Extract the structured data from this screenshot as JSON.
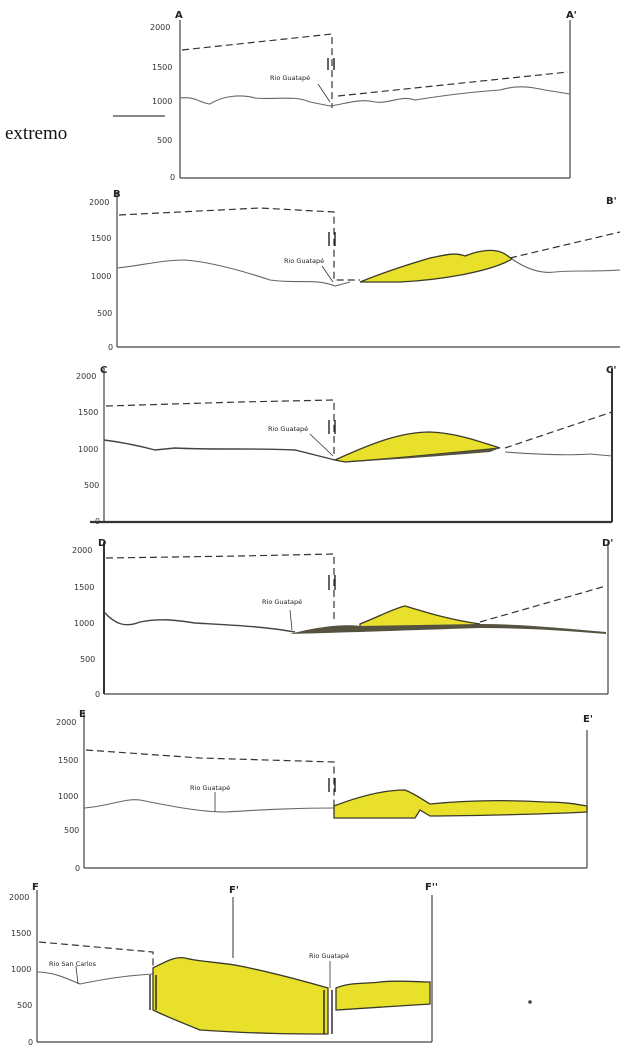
{
  "side_label": "extremo",
  "sections": [
    {
      "start": "A",
      "end": "A'",
      "ticks": [
        "2000",
        "1500",
        "1000",
        "500",
        "0"
      ],
      "river": "Rio Guatapé"
    },
    {
      "start": "B",
      "end": "B'",
      "ticks": [
        "2000",
        "1500",
        "1000",
        "500",
        "0"
      ],
      "river": "Rio Guatapé"
    },
    {
      "start": "C",
      "end": "C'",
      "ticks": [
        "2000",
        "1500",
        "1000",
        "500",
        "0"
      ],
      "river": "Rio Guatapé"
    },
    {
      "start": "D",
      "end": "D'",
      "ticks": [
        "2000",
        "1500",
        "1000",
        "500",
        "0"
      ],
      "river": "Rio Guatapé"
    },
    {
      "start": "E",
      "end": "E'",
      "ticks": [
        "2000",
        "1500",
        "1000",
        "500",
        "0"
      ],
      "river": "Rio Guatapé"
    },
    {
      "start": "F",
      "mid": "F'",
      "end": "F''",
      "ticks": [
        "2000",
        "1500",
        "1000",
        "500",
        "0"
      ],
      "river": "Rio Guatapé",
      "river2": "Rio San Carlos"
    }
  ],
  "colors": {
    "deposit": "#e8e02a",
    "dark_fill": "#55533f"
  }
}
